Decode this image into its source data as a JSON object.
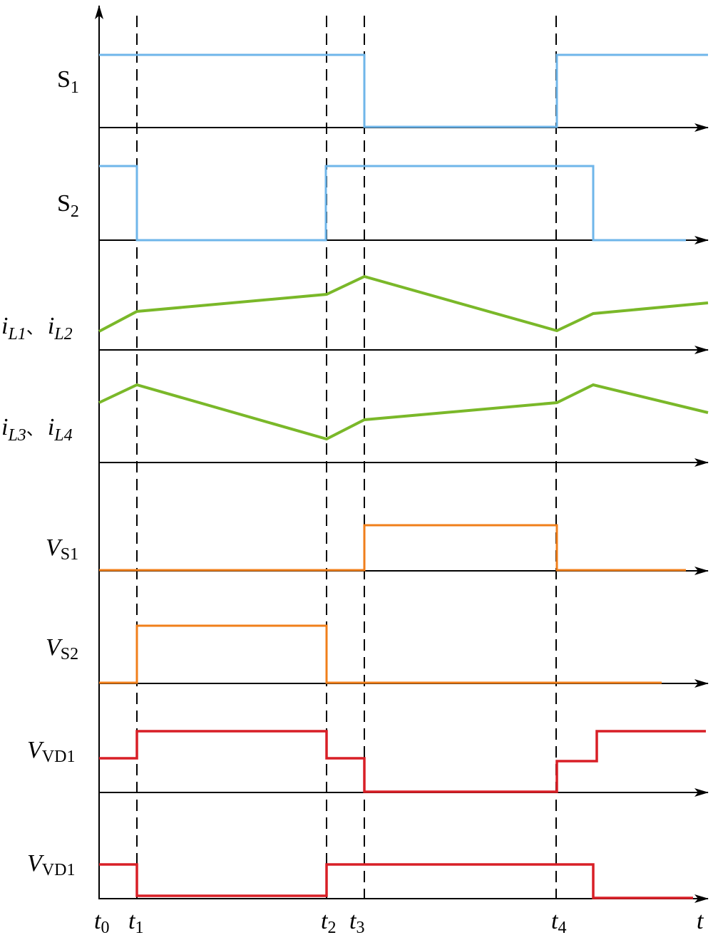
{
  "colors": {
    "switch": "#6fb6ea",
    "current": "#7ab829",
    "switch_voltage": "#f07f1b",
    "diode_voltage": "#d81f26",
    "axis": "#000000"
  },
  "time_labels": [
    {
      "main": "t",
      "sub": "0"
    },
    {
      "main": "t",
      "sub": "1"
    },
    {
      "main": "t",
      "sub": "2"
    },
    {
      "main": "t",
      "sub": "3"
    },
    {
      "main": "t",
      "sub": "4"
    }
  ],
  "time_axis_label": "t",
  "rows": [
    {
      "key": "s1",
      "label": {
        "main": "S",
        "sub": "1",
        "italic": false
      }
    },
    {
      "key": "s2",
      "label": {
        "main": "S",
        "sub": "2",
        "italic": false
      }
    },
    {
      "key": "il12",
      "label": {
        "a_main": "i",
        "a_sub": "L1",
        "sep": "、",
        "b_main": "i",
        "b_sub": "L2"
      }
    },
    {
      "key": "il34",
      "label": {
        "a_main": "i",
        "a_sub": "L3",
        "sep": "、",
        "b_main": "i",
        "b_sub": "L4"
      }
    },
    {
      "key": "vs1",
      "label": {
        "main": "V",
        "sub": "S1",
        "italic": true
      }
    },
    {
      "key": "vs2",
      "label": {
        "main": "V",
        "sub": "S2",
        "italic": true
      }
    },
    {
      "key": "vvd1a",
      "label": {
        "main": "V",
        "sub": "VD1",
        "italic": true
      }
    },
    {
      "key": "vvd1b",
      "label": {
        "main": "V",
        "sub": "VD1",
        "italic": true
      }
    }
  ]
}
